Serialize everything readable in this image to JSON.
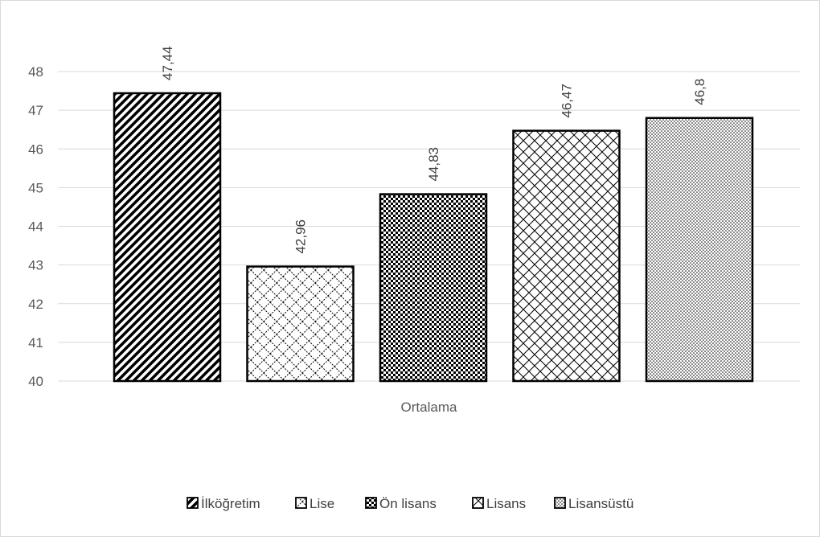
{
  "chart_data": {
    "type": "bar",
    "categories": [
      "Ortalama"
    ],
    "series": [
      {
        "name": "İlköğretim",
        "values": [
          47.44
        ],
        "label": "47,44",
        "pattern": "diagonal-stripes"
      },
      {
        "name": "Lise",
        "values": [
          42.96
        ],
        "label": "42,96",
        "pattern": "weave"
      },
      {
        "name": "Ön lisans",
        "values": [
          44.83
        ],
        "label": "44,83",
        "pattern": "checker"
      },
      {
        "name": "Lisans",
        "values": [
          46.47
        ],
        "label": "46,47",
        "pattern": "diamond-grid"
      },
      {
        "name": "Lisansüstü",
        "values": [
          46.8
        ],
        "label": "46,8",
        "pattern": "dots"
      }
    ],
    "yticks": [
      "40",
      "41",
      "42",
      "43",
      "44",
      "45",
      "46",
      "47",
      "48"
    ],
    "ylim": [
      40,
      48
    ],
    "title": "",
    "xlabel": "",
    "ylabel": "",
    "grid": true,
    "legend": "bottom",
    "colors": {
      "bar_fill": "#000000",
      "bar_background": "#ffffff",
      "grid": "#d9d9d9",
      "text": "#595959"
    }
  }
}
